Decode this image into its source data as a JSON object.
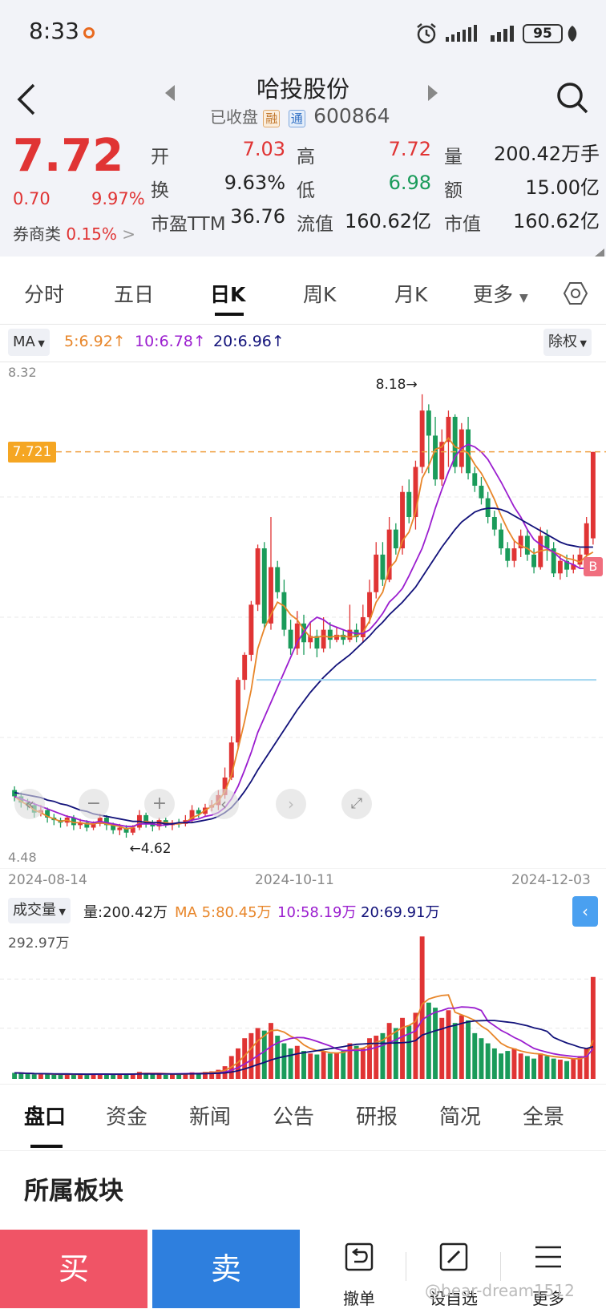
{
  "status_bar": {
    "time": "8:33",
    "battery": "95"
  },
  "header": {
    "name": "哈投股份",
    "state": "已收盘",
    "tag_margin": "融",
    "tag_connect": "通",
    "code": "600864"
  },
  "quote": {
    "price": "7.72",
    "change": "0.70",
    "change_pct": "9.97%",
    "broker_label": "券商类",
    "broker_value": "0.15%",
    "open_label": "开",
    "open": "7.03",
    "high_label": "高",
    "high": "7.72",
    "volume_label": "量",
    "volume": "200.42万手",
    "turnover_label": "换",
    "turnover": "9.63%",
    "low_label": "低",
    "low": "6.98",
    "amount_label": "额",
    "amount": "15.00亿",
    "pe_label": "市盈TTM",
    "pe": "36.76",
    "float_cap_label": "流值",
    "float_cap": "160.62亿",
    "mkt_cap_label": "市值",
    "mkt_cap": "160.62亿"
  },
  "tabs": [
    "分时",
    "五日",
    "日K",
    "周K",
    "月K",
    "更多"
  ],
  "ma_row": {
    "indicator": "MA",
    "ma5": "5:6.92↑",
    "ma10": "10:6.78↑",
    "ma20": "20:6.96↑",
    "adjust": "除权"
  },
  "colors": {
    "red": "#e03434",
    "green": "#1a9b5a",
    "ma5": "#e8862a",
    "ma10": "#9b1ecf",
    "ma20": "#12127a"
  },
  "chart_data": {
    "type": "candlestick",
    "y_max_label": "8.32",
    "y_min_label": "4.48",
    "ylim": [
      4.48,
      8.32
    ],
    "current_price_line": "7.721",
    "annotations": {
      "high": "8.18→",
      "low": "←4.62"
    },
    "x_labels": [
      "2024-08-14",
      "2024-10-11",
      "2024-12-03"
    ],
    "candles": [
      [
        5.02,
        4.97,
        5.05,
        4.93
      ],
      [
        4.97,
        4.92,
        5.0,
        4.88
      ],
      [
        4.92,
        4.9,
        4.95,
        4.86
      ],
      [
        4.9,
        4.84,
        4.92,
        4.8
      ],
      [
        4.84,
        4.86,
        4.9,
        4.81
      ],
      [
        4.86,
        4.8,
        4.88,
        4.76
      ],
      [
        4.8,
        4.78,
        4.83,
        4.74
      ],
      [
        4.78,
        4.76,
        4.8,
        4.72
      ],
      [
        4.76,
        4.8,
        4.82,
        4.73
      ],
      [
        4.8,
        4.74,
        4.82,
        4.7
      ],
      [
        4.74,
        4.76,
        4.79,
        4.71
      ],
      [
        4.76,
        4.72,
        4.78,
        4.69
      ],
      [
        4.72,
        4.75,
        4.77,
        4.7
      ],
      [
        4.75,
        4.8,
        4.83,
        4.73
      ],
      [
        4.8,
        4.74,
        4.82,
        4.7
      ],
      [
        4.74,
        4.7,
        4.76,
        4.67
      ],
      [
        4.7,
        4.72,
        4.75,
        4.66
      ],
      [
        4.72,
        4.68,
        4.74,
        4.64
      ],
      [
        4.68,
        4.72,
        4.74,
        4.66
      ],
      [
        4.72,
        4.82,
        4.86,
        4.7
      ],
      [
        4.82,
        4.76,
        4.84,
        4.72
      ],
      [
        4.76,
        4.73,
        4.78,
        4.69
      ],
      [
        4.73,
        4.78,
        4.8,
        4.7
      ],
      [
        4.78,
        4.74,
        4.8,
        4.72
      ],
      [
        4.74,
        4.76,
        4.78,
        4.7
      ],
      [
        4.76,
        4.75,
        4.79,
        4.72
      ],
      [
        4.75,
        4.78,
        4.82,
        4.73
      ],
      [
        4.78,
        4.86,
        4.9,
        4.76
      ],
      [
        4.86,
        4.83,
        4.88,
        4.8
      ],
      [
        4.83,
        4.88,
        4.91,
        4.81
      ],
      [
        4.88,
        4.9,
        4.94,
        4.85
      ],
      [
        4.9,
        4.98,
        5.02,
        4.86
      ],
      [
        4.98,
        5.12,
        5.2,
        4.95
      ],
      [
        5.12,
        5.4,
        5.45,
        5.1
      ],
      [
        5.4,
        5.9,
        5.92,
        5.35
      ],
      [
        5.9,
        6.1,
        6.12,
        5.82
      ],
      [
        6.1,
        6.5,
        6.53,
        6.05
      ],
      [
        6.5,
        6.95,
        6.98,
        6.45
      ],
      [
        6.95,
        6.35,
        7.0,
        6.3
      ],
      [
        6.35,
        6.8,
        7.2,
        6.3
      ],
      [
        6.8,
        6.6,
        6.85,
        6.55
      ],
      [
        6.6,
        6.3,
        6.7,
        6.25
      ],
      [
        6.3,
        6.15,
        6.38,
        6.1
      ],
      [
        6.15,
        6.35,
        6.45,
        6.1
      ],
      [
        6.35,
        6.2,
        6.42,
        6.1
      ],
      [
        6.2,
        6.25,
        6.36,
        6.15
      ],
      [
        6.25,
        6.15,
        6.3,
        6.08
      ],
      [
        6.15,
        6.3,
        6.4,
        6.12
      ],
      [
        6.3,
        6.22,
        6.36,
        6.15
      ],
      [
        6.22,
        6.26,
        6.32,
        6.2
      ],
      [
        6.26,
        6.22,
        6.3,
        6.18
      ],
      [
        6.22,
        6.3,
        6.5,
        6.2
      ],
      [
        6.3,
        6.24,
        6.35,
        6.2
      ],
      [
        6.24,
        6.4,
        6.5,
        6.2
      ],
      [
        6.4,
        6.6,
        6.7,
        6.35
      ],
      [
        6.6,
        6.9,
        7.0,
        6.55
      ],
      [
        6.9,
        6.7,
        7.0,
        6.65
      ],
      [
        6.7,
        7.1,
        7.2,
        6.68
      ],
      [
        7.1,
        6.95,
        7.15,
        6.9
      ],
      [
        6.95,
        7.4,
        7.45,
        6.9
      ],
      [
        7.4,
        7.2,
        7.5,
        7.15
      ],
      [
        7.2,
        7.6,
        7.65,
        7.1
      ],
      [
        7.6,
        8.05,
        8.18,
        7.55
      ],
      [
        8.05,
        7.85,
        8.1,
        7.55
      ],
      [
        7.85,
        7.5,
        8.0,
        7.45
      ],
      [
        7.5,
        7.8,
        7.9,
        7.45
      ],
      [
        7.8,
        8.0,
        8.05,
        7.6
      ],
      [
        8.0,
        7.6,
        8.02,
        7.55
      ],
      [
        7.6,
        7.9,
        7.95,
        7.55
      ],
      [
        7.9,
        7.55,
        8.0,
        7.5
      ],
      [
        7.55,
        7.45,
        7.6,
        7.4
      ],
      [
        7.45,
        7.35,
        7.52,
        7.3
      ],
      [
        7.35,
        7.2,
        7.4,
        7.15
      ],
      [
        7.2,
        7.1,
        7.25,
        7.05
      ],
      [
        7.1,
        6.95,
        7.15,
        6.9
      ],
      [
        6.95,
        6.85,
        7.0,
        6.8
      ],
      [
        6.85,
        6.95,
        7.02,
        6.8
      ],
      [
        6.95,
        7.05,
        7.1,
        6.88
      ],
      [
        7.05,
        6.9,
        7.1,
        6.85
      ],
      [
        6.9,
        6.8,
        6.95,
        6.75
      ],
      [
        6.8,
        7.05,
        7.12,
        6.78
      ],
      [
        7.05,
        6.95,
        7.1,
        6.85
      ],
      [
        6.95,
        6.75,
        7.0,
        6.72
      ],
      [
        6.75,
        6.85,
        6.9,
        6.7
      ],
      [
        6.85,
        6.78,
        6.9,
        6.72
      ],
      [
        6.78,
        6.82,
        6.9,
        6.75
      ],
      [
        6.82,
        6.9,
        6.95,
        6.8
      ],
      [
        6.9,
        7.15,
        7.2,
        6.85
      ],
      [
        7.03,
        7.72,
        7.72,
        6.98
      ]
    ],
    "ma5": [
      4.97,
      4.93,
      4.9,
      4.86,
      4.84,
      4.81,
      4.79,
      4.77,
      4.78,
      4.76,
      4.76,
      4.75,
      4.75,
      4.76,
      4.75,
      4.74,
      4.73,
      4.71,
      4.72,
      4.76,
      4.77,
      4.76,
      4.76,
      4.76,
      4.75,
      4.75,
      4.76,
      4.8,
      4.82,
      4.86,
      4.89,
      4.93,
      5.01,
      5.14,
      5.35,
      5.57,
      5.82,
      6.15,
      6.31,
      6.42,
      6.52,
      6.49,
      6.42,
      6.38,
      6.3,
      6.24,
      6.24,
      6.25,
      6.24,
      6.25,
      6.25,
      6.24,
      6.25,
      6.28,
      6.37,
      6.52,
      6.6,
      6.79,
      6.85,
      7.01,
      7.08,
      7.24,
      7.51,
      7.61,
      7.74,
      7.76,
      7.83,
      7.76,
      7.74,
      7.71,
      7.62,
      7.55,
      7.45,
      7.34,
      7.21,
      7.1,
      7.01,
      6.97,
      6.95,
      6.91,
      6.93,
      6.94,
      6.92,
      6.9,
      6.87,
      6.86,
      6.84,
      6.89,
      6.92
    ],
    "ma10": [
      4.97,
      4.95,
      4.93,
      4.91,
      4.89,
      4.87,
      4.85,
      4.83,
      4.81,
      4.8,
      4.78,
      4.77,
      4.76,
      4.77,
      4.76,
      4.75,
      4.74,
      4.73,
      4.73,
      4.75,
      4.75,
      4.75,
      4.74,
      4.74,
      4.75,
      4.76,
      4.76,
      4.78,
      4.79,
      4.81,
      4.82,
      4.84,
      4.88,
      4.95,
      5.05,
      5.18,
      5.32,
      5.48,
      5.6,
      5.72,
      5.84,
      5.96,
      6.08,
      6.2,
      6.28,
      6.36,
      6.4,
      6.38,
      6.34,
      6.32,
      6.3,
      6.28,
      6.27,
      6.27,
      6.3,
      6.36,
      6.43,
      6.52,
      6.57,
      6.63,
      6.73,
      6.84,
      6.95,
      7.1,
      7.27,
      7.42,
      7.56,
      7.68,
      7.75,
      7.78,
      7.76,
      7.72,
      7.66,
      7.57,
      7.48,
      7.38,
      7.28,
      7.2,
      7.1,
      7.02,
      6.98,
      6.95,
      6.92,
      6.87,
      6.84,
      6.82,
      6.79,
      6.79,
      6.78
    ],
    "ma20": [
      5.0,
      4.99,
      4.98,
      4.97,
      4.96,
      4.94,
      4.93,
      4.91,
      4.9,
      4.88,
      4.86,
      4.85,
      4.83,
      4.82,
      4.81,
      4.8,
      4.79,
      4.78,
      4.77,
      4.77,
      4.76,
      4.76,
      4.76,
      4.75,
      4.75,
      4.76,
      4.76,
      4.76,
      4.77,
      4.78,
      4.79,
      4.81,
      4.84,
      4.88,
      4.94,
      5.01,
      5.09,
      5.18,
      5.26,
      5.34,
      5.42,
      5.5,
      5.58,
      5.66,
      5.73,
      5.8,
      5.86,
      5.92,
      5.97,
      6.02,
      6.06,
      6.1,
      6.15,
      6.2,
      6.25,
      6.31,
      6.36,
      6.42,
      6.47,
      6.52,
      6.58,
      6.64,
      6.72,
      6.8,
      6.88,
      6.96,
      7.03,
      7.1,
      7.16,
      7.2,
      7.24,
      7.26,
      7.27,
      7.27,
      7.26,
      7.24,
      7.21,
      7.18,
      7.15,
      7.12,
      7.09,
      7.06,
      7.03,
      7.0,
      6.98,
      6.97,
      6.96,
      6.96,
      6.96
    ]
  },
  "volume": {
    "label": "成交量",
    "amount": "量:200.42万",
    "ma5": "MA 5:80.45万",
    "ma10": "10:58.19万",
    "ma20": "20:69.91万",
    "max_label": "292.97万",
    "ylim": [
      0,
      292.97
    ],
    "values": [
      12,
      11,
      10,
      9,
      10,
      9,
      8,
      9,
      10,
      9,
      8,
      9,
      10,
      11,
      9,
      8,
      9,
      10,
      11,
      14,
      12,
      9,
      10,
      8,
      9,
      10,
      11,
      13,
      12,
      14,
      15,
      18,
      25,
      45,
      60,
      80,
      90,
      100,
      95,
      110,
      85,
      70,
      60,
      65,
      55,
      50,
      48,
      55,
      50,
      52,
      55,
      70,
      65,
      60,
      80,
      85,
      90,
      110,
      100,
      120,
      105,
      130,
      280,
      150,
      140,
      120,
      135,
      110,
      125,
      115,
      90,
      80,
      70,
      60,
      50,
      55,
      60,
      50,
      45,
      40,
      50,
      45,
      40,
      38,
      35,
      40,
      45,
      60,
      200.42
    ]
  },
  "bottom_tabs": [
    "盘口",
    "资金",
    "新闻",
    "公告",
    "研报",
    "简况",
    "全景"
  ],
  "section_title": "所属板块",
  "footer": {
    "buy": "买",
    "sell": "卖",
    "cancel": "撤单",
    "watchlist": "设自选",
    "more": "更多"
  },
  "watermark": "@bear-dream1512"
}
